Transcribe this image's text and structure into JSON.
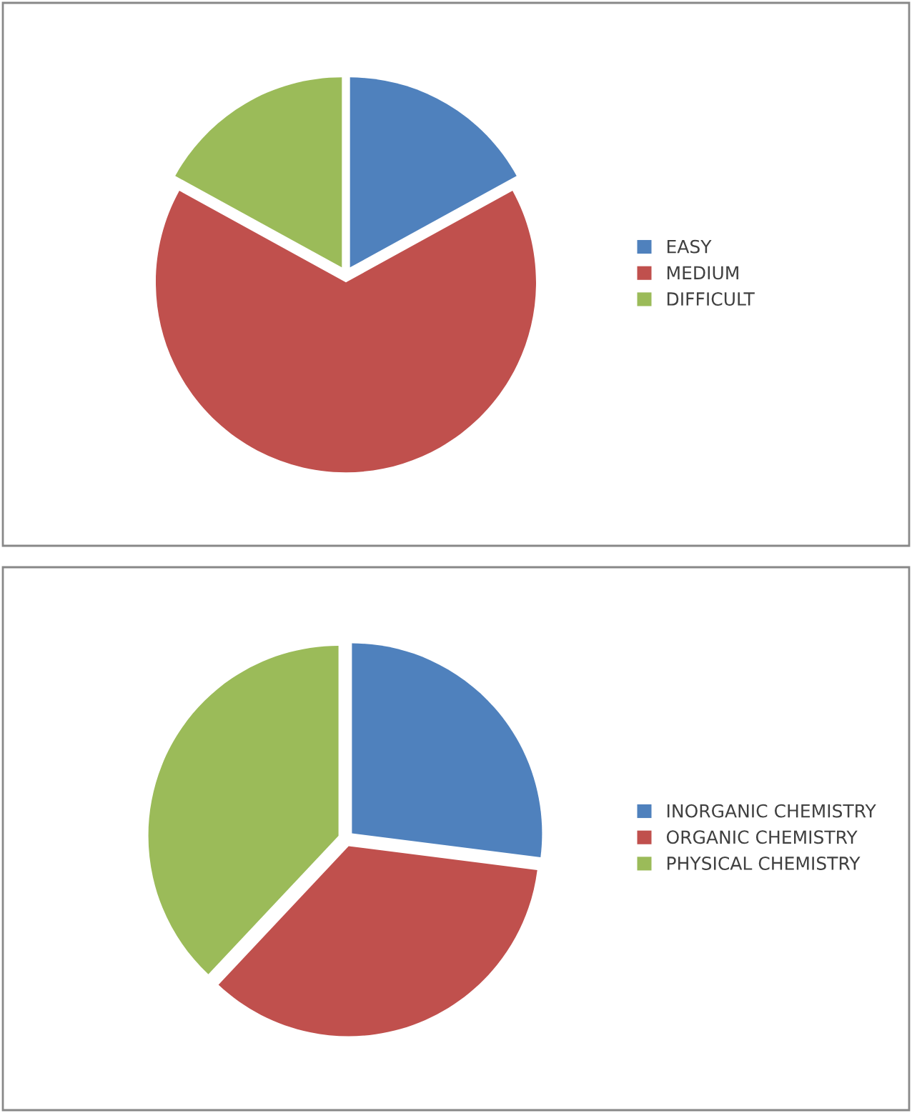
{
  "chart_data": [
    {
      "type": "pie",
      "categories": [
        "EASY",
        "MEDIUM",
        "DIFFICULT"
      ],
      "values": [
        17,
        66,
        17
      ],
      "colors": [
        "#4f81bd",
        "#c0504d",
        "#9bbb59"
      ],
      "legend": "right"
    },
    {
      "type": "pie",
      "categories": [
        "INORGANIC CHEMISTRY",
        "ORGANIC CHEMISTRY",
        "PHYSICAL CHEMISTRY"
      ],
      "values": [
        27,
        35,
        38
      ],
      "colors": [
        "#4f81bd",
        "#c0504d",
        "#9bbb59"
      ],
      "legend": "right"
    }
  ]
}
